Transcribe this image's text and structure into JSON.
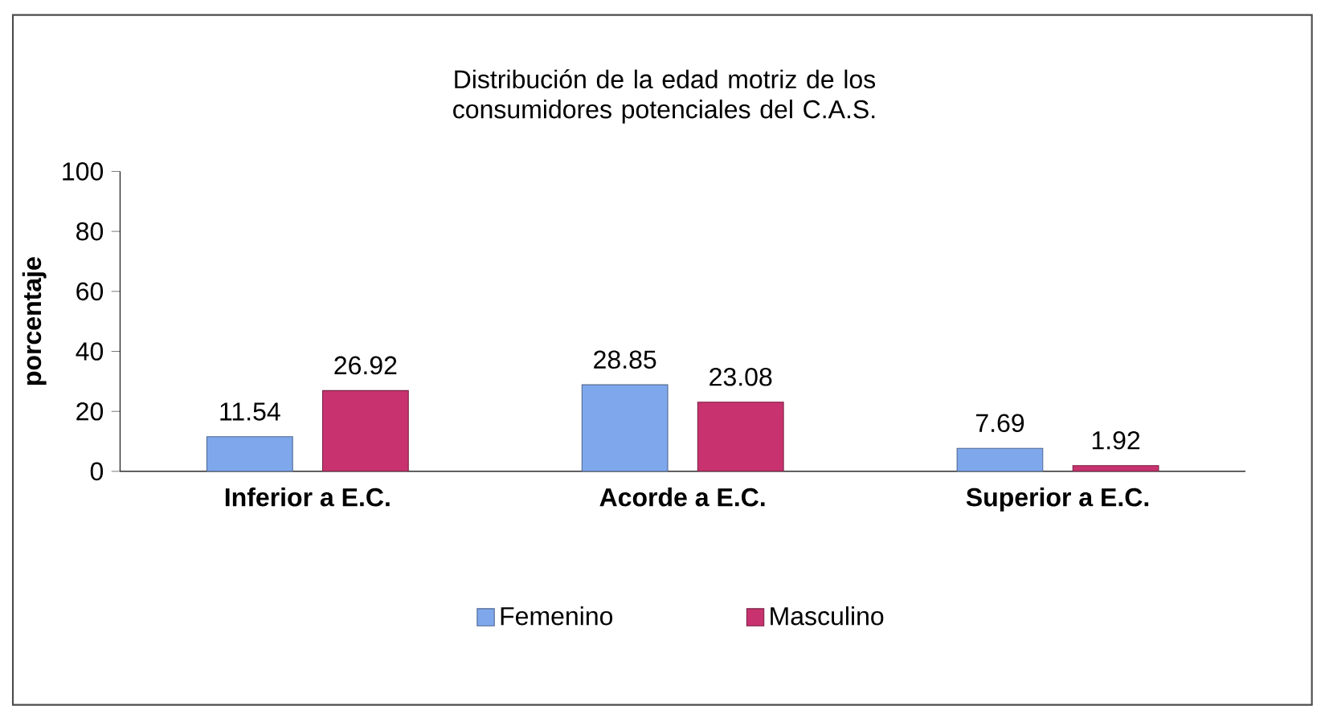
{
  "chart_data": {
    "type": "bar",
    "title": "Distribución de la edad motriz de los consumidores potenciales del C.A.S.",
    "ylabel": "porcentaje",
    "categories": [
      "Inferior a E.C.",
      "Acorde a E.C.",
      "Superior a E.C."
    ],
    "series": [
      {
        "name": "Femenino",
        "color": "#7fa8ec",
        "values": [
          11.54,
          28.85,
          7.69
        ]
      },
      {
        "name": "Masculino",
        "color": "#c8336f",
        "values": [
          26.92,
          23.08,
          1.92
        ]
      }
    ],
    "ylim": [
      0,
      100
    ],
    "yticks": [
      0,
      20,
      40,
      60,
      80,
      100
    ],
    "grid": false,
    "legend": "bottom",
    "data_labels": true
  }
}
